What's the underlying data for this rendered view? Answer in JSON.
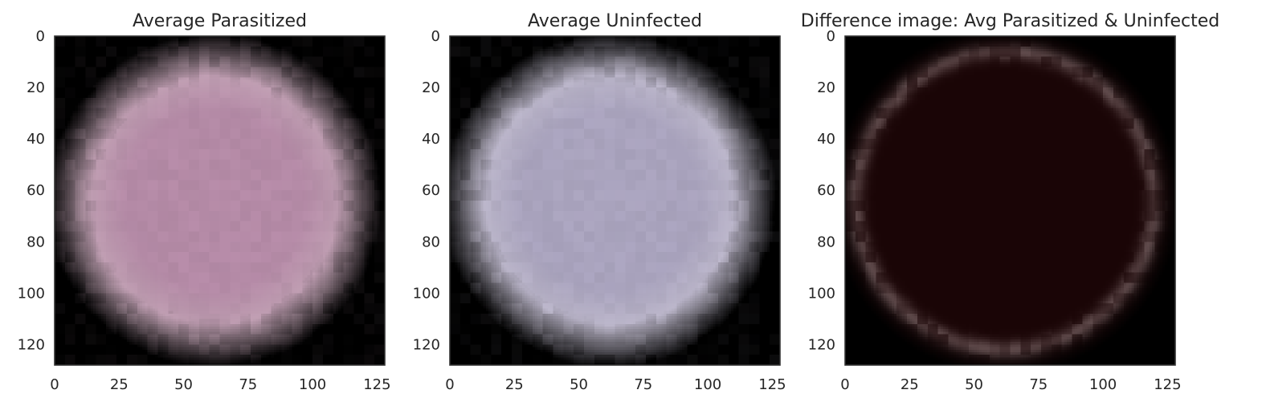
{
  "chart_data": [
    {
      "type": "heatmap",
      "title": "Average Parasitized",
      "image_kind": "average-rgb-cell",
      "image_size": [
        128,
        128
      ],
      "xlim": [
        0,
        128
      ],
      "ylim": [
        128,
        0
      ],
      "xticks": [
        0,
        25,
        50,
        75,
        100,
        125
      ],
      "yticks": [
        0,
        20,
        40,
        60,
        80,
        100,
        120
      ],
      "grid": false,
      "background_color": "#000000",
      "cell_center_color": "#b48aa6",
      "cell_edge_color": "#c9b5bd",
      "cell_center": [
        62,
        64
      ],
      "cell_radius": 58
    },
    {
      "type": "heatmap",
      "title": "Average Uninfected",
      "image_kind": "average-rgb-cell",
      "image_size": [
        128,
        128
      ],
      "xlim": [
        0,
        128
      ],
      "ylim": [
        128,
        0
      ],
      "xticks": [
        0,
        25,
        50,
        75,
        100,
        125
      ],
      "yticks": [
        0,
        20,
        40,
        60,
        80,
        100,
        120
      ],
      "grid": false,
      "background_color": "#000000",
      "cell_center_color": "#a9a3bd",
      "cell_edge_color": "#cfcbd6",
      "cell_center": [
        62,
        64
      ],
      "cell_radius": 58
    },
    {
      "type": "heatmap",
      "title": "Difference image: Avg Parasitized & Uninfected",
      "image_kind": "difference-rgb",
      "image_size": [
        128,
        128
      ],
      "xlim": [
        0,
        128
      ],
      "ylim": [
        128,
        0
      ],
      "xticks": [
        0,
        25,
        50,
        75,
        100,
        125
      ],
      "yticks": [
        0,
        20,
        40,
        60,
        80,
        100,
        120
      ],
      "grid": false,
      "background_color": "#000000",
      "cell_center_color": "#1a0506",
      "cell_edge_color": "#3a3a3a",
      "cell_center": [
        62,
        64
      ],
      "cell_radius": 58
    }
  ]
}
